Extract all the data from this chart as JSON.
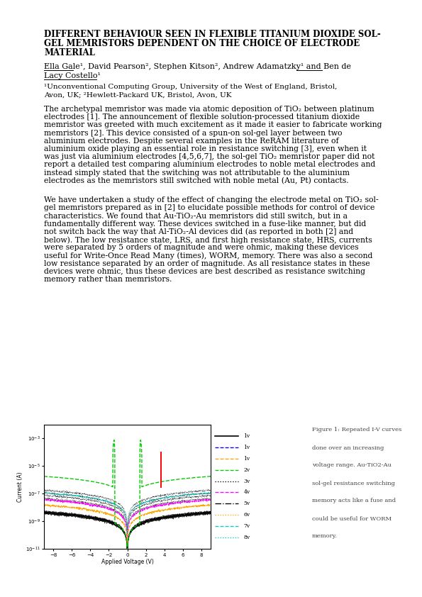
{
  "bg_color": "#ffffff",
  "text_color": "#000000",
  "title_lines": [
    "DIFFERENT BEHAVIOUR SEEN IN FLEXIBLE TITANIUM DIOXIDE SOL-",
    "GEL MEMRISTORS DEPENDENT ON THE CHOICE OF ELECTRODE",
    "MATERIAL"
  ],
  "authors_line1": "Ella Gale¹, David Pearson², Stephen Kitson², Andrew Adamatzky¹ and Ben de",
  "authors_line2": "Lacy Costello¹",
  "aff_line1": "¹Unconventional Computing Group, University of the West of England, Bristol,",
  "aff_line2": "Avon, UK; ²Hewlett-Packard UK, Bristol, Avon, UK",
  "para1_lines": [
    "The archetypal memristor was made via atomic deposition of TiO₂ between platinum",
    "electrodes [1]. The announcement of flexible solution-processed titanium dioxide",
    "memristor was greeted with much excitement as it made it easier to fabricate working",
    "memristors [2]. This device consisted of a spun-on sol-gel layer between two",
    "aluminium electrodes. Despite several examples in the ReRAM literature of",
    "aluminium oxide playing an essential role in resistance switching [3], even when it",
    "was just via aluminium electrodes [4,5,6,7], the sol-gel TiO₂ memristor paper did not",
    "report a detailed test comparing aluminium electrodes to noble metal electrodes and",
    "instead simply stated that the switching was not attributable to the aluminium",
    "electrodes as the memristors still switched with noble metal (Au, Pt) contacts."
  ],
  "para2_lines": [
    "We have undertaken a study of the effect of changing the electrode metal on TiO₂ sol-",
    "gel memristors prepared as in [2] to elucidate possible methods for control of device",
    "characteristics. We found that Au-TiO₂-Au memristors did still switch, but in a",
    "fundamentally different way. These devices switched in a fuse-like manner, but did",
    "not switch back the way that Al-TiO₂-Al devices did (as reported in both [2] and",
    "below). The low resistance state, LRS, and first high resistance state, HRS, currents",
    "were separated by 5 orders of magnitude and were ohmic, making these devices",
    "useful for Write-Once Read Many (times), WORM, memory. There was also a second",
    "low resistance separated by an order of magnitude. As all resistance states in these",
    "devices were ohmic, thus these devices are best described as resistance switching",
    "memory rather than memristors."
  ],
  "figure_caption_lines": [
    "Figure 1: Repeated I-V curves",
    "done over an increasing",
    "voltage range. Au-TiO2-Au",
    "sol-gel resistance switching",
    "memory acts like a fuse and",
    "could be useful for WORM",
    "memory."
  ],
  "legend_entries": [
    {
      "label": "1v",
      "color": "#000000",
      "ls": "-",
      "lw": 1.0
    },
    {
      "label": "1v",
      "color": "#0000ff",
      "ls": "--",
      "lw": 0.8
    },
    {
      "label": "1v",
      "color": "#ffa500",
      "ls": "--",
      "lw": 0.8
    },
    {
      "label": "2v",
      "color": "#00cc00",
      "ls": "--",
      "lw": 0.8
    },
    {
      "label": "3v",
      "color": "#000000",
      "ls": ":",
      "lw": 0.8
    },
    {
      "label": "4v",
      "color": "#ff00ff",
      "ls": "--",
      "lw": 0.8
    },
    {
      "label": "5v",
      "color": "#000000",
      "ls": "-.",
      "lw": 0.8
    },
    {
      "label": "6v",
      "color": "#ffa500",
      "ls": ":",
      "lw": 0.8
    },
    {
      "label": "7v",
      "color": "#00cccc",
      "ls": "--",
      "lw": 0.8
    },
    {
      "label": "8v",
      "color": "#00cccc",
      "ls": ":",
      "lw": 0.8
    }
  ]
}
